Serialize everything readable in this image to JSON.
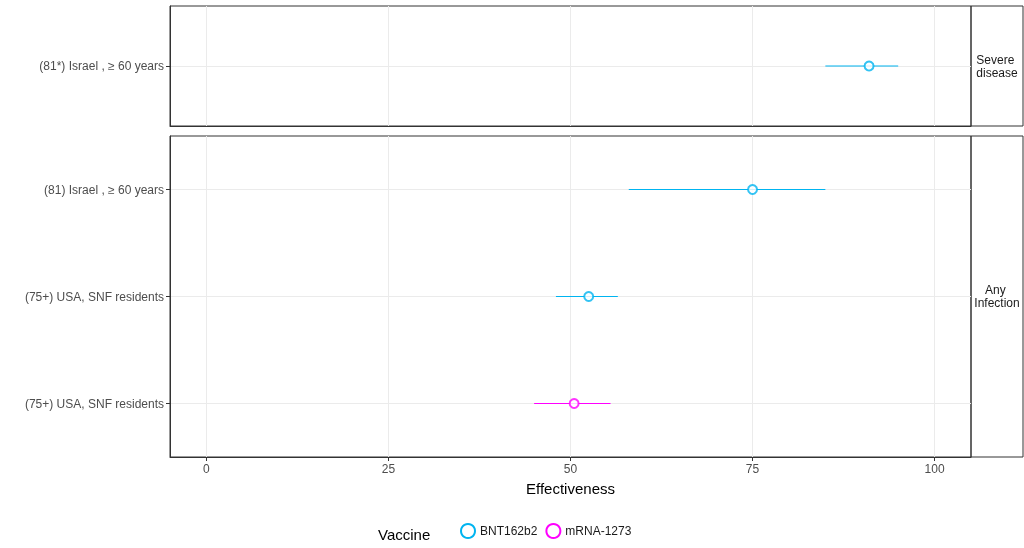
{
  "chart_data": [
    {
      "type": "scatter",
      "orientation": "horizontal",
      "annotations": [
        "Severe disease"
      ],
      "categories": [
        "(81*) Israel , ≥ 60 years"
      ],
      "series": [
        {
          "color": "#00b4f0",
          "values": [
            91
          ],
          "errors": [
            [
              85,
              95
            ]
          ]
        }
      ],
      "xlim": [
        -5,
        105
      ],
      "xticks": [
        0,
        25,
        50,
        75,
        100
      ],
      "tick_labels": "y",
      "grid": true,
      "marker": "circle",
      "legend": false
    },
    {
      "type": "scatter",
      "orientation": "horizontal",
      "annotations": [
        "Any Infection"
      ],
      "xlabel": "Effectiveness",
      "legend_title": "Vaccine",
      "categories": [
        "(81) Israel , ≥ 60 years",
        "(75+) USA, SNF residents",
        "(75+) USA, SNF residents"
      ],
      "series": [
        {
          "name": "BNT162b2",
          "color": "#00b4f0",
          "values": [
            75,
            52.5,
            null
          ],
          "errors": [
            [
              58,
              85
            ],
            [
              48,
              56.5
            ],
            null
          ]
        },
        {
          "name": "mRNA-1273",
          "color": "#ff00ff",
          "values": [
            null,
            null,
            50.5
          ],
          "errors": [
            null,
            null,
            [
              45,
              55.5
            ]
          ]
        }
      ],
      "xlim": [
        -5,
        105
      ],
      "xticks": [
        0,
        25,
        50,
        75,
        100
      ],
      "grid": true,
      "marker": "circle",
      "legend": "bottom"
    }
  ]
}
